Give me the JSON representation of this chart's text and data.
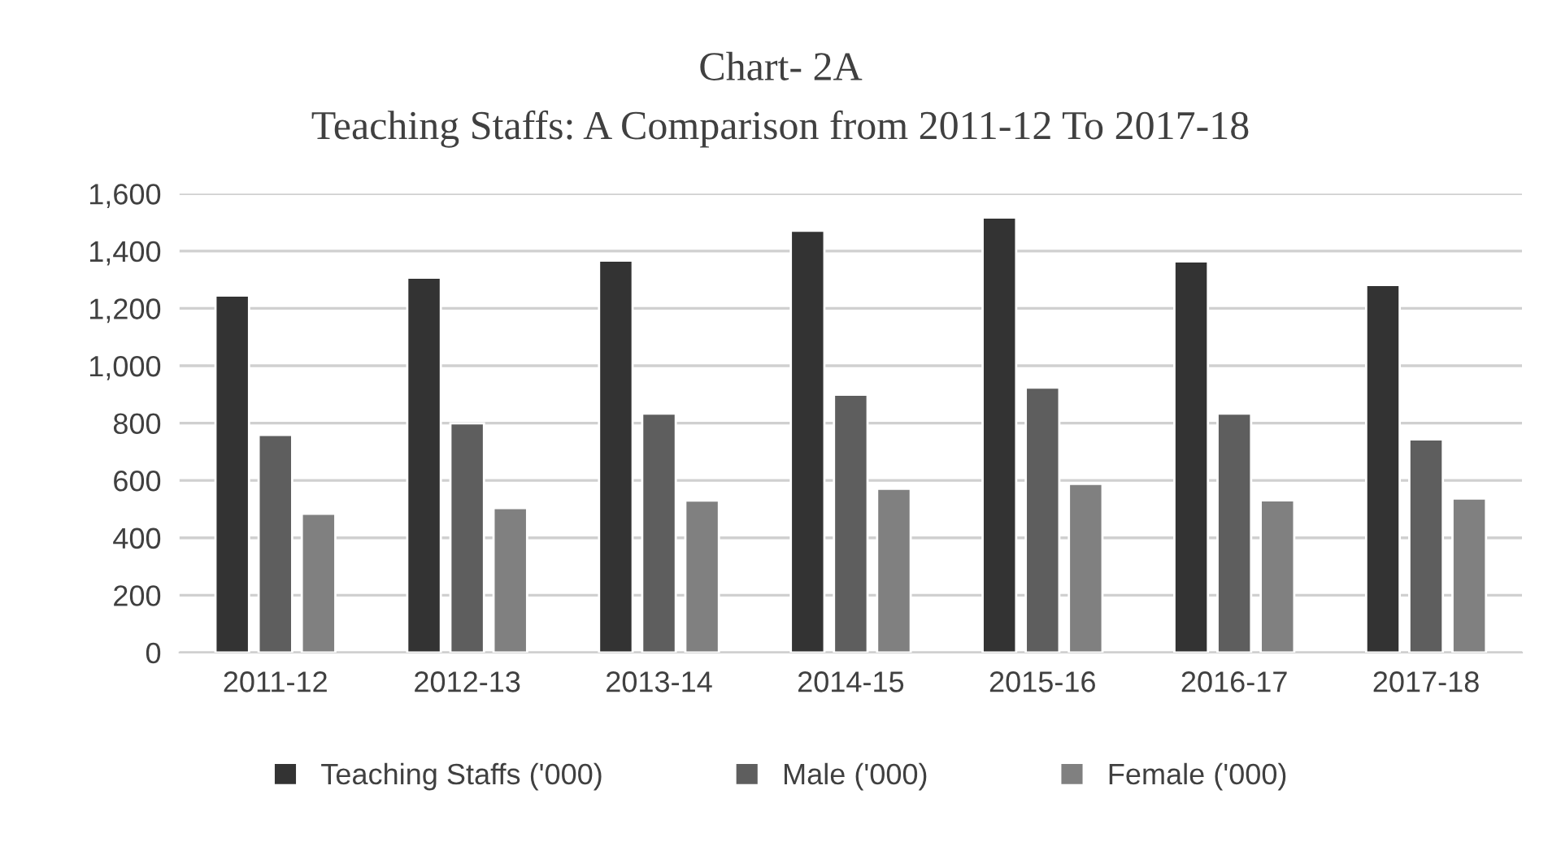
{
  "chart_data": {
    "type": "bar",
    "title": "Chart- 2A",
    "subtitle": "Teaching Staffs: A Comparison from 2011-12 To 2017-18",
    "categories": [
      "2011-12",
      "2012-13",
      "2013-14",
      "2014-15",
      "2015-16",
      "2016-17",
      "2017-18"
    ],
    "series": [
      {
        "name": "Teaching Staffs ('000)",
        "color": "#333333",
        "values": [
          1245,
          1307,
          1367,
          1471,
          1517,
          1364,
          1282
        ]
      },
      {
        "name": "Male ('000)",
        "color": "#5e5e5e",
        "values": [
          759,
          799,
          833,
          899,
          924,
          833,
          743
        ]
      },
      {
        "name": "Female ('000)",
        "color": "#808080",
        "values": [
          484,
          504,
          530,
          571,
          588,
          531,
          537
        ]
      }
    ],
    "ylim": [
      0,
      1600
    ],
    "yticks": [
      {
        "value": 0,
        "label": "0"
      },
      {
        "value": 200,
        "label": "200"
      },
      {
        "value": 400,
        "label": "400"
      },
      {
        "value": 600,
        "label": "600"
      },
      {
        "value": 800,
        "label": "800"
      },
      {
        "value": 1000,
        "label": "1,000"
      },
      {
        "value": 1200,
        "label": "1,200"
      },
      {
        "value": 1400,
        "label": "1,400"
      },
      {
        "value": 1600,
        "label": "1,600"
      }
    ],
    "grid": "y",
    "legend": "bottom"
  }
}
